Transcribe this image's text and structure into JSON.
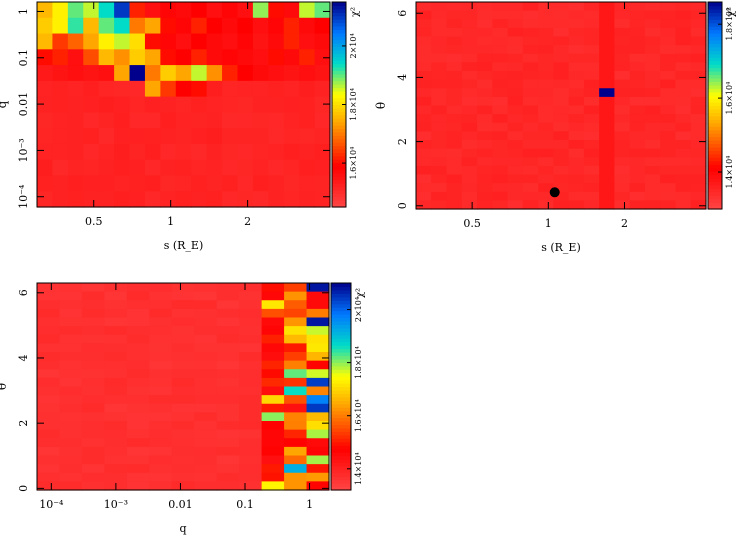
{
  "chart_data": [
    {
      "type": "heatmap",
      "panel": "top-left",
      "xlabel": "s (R_E)",
      "ylabel": "q",
      "xscale": "log",
      "yscale": "log",
      "xlim": [
        0.3,
        4.2
      ],
      "ylim": [
        6e-05,
        1.6
      ],
      "xticks": [
        {
          "v": 0.5,
          "label": "0.5"
        },
        {
          "v": 1,
          "label": "1"
        },
        {
          "v": 2,
          "label": "2"
        }
      ],
      "yticks": [
        {
          "v": 0.0001,
          "label": "10⁻⁴"
        },
        {
          "v": 0.001,
          "label": "10⁻³"
        },
        {
          "v": 0.01,
          "label": "0.01"
        },
        {
          "v": 0.1,
          "label": "0.1"
        },
        {
          "v": 1,
          "label": "1"
        }
      ],
      "colorbar": {
        "label": "χ²",
        "ticks": [
          {
            "v": 16000,
            "label": "1.6×10⁴"
          },
          {
            "v": 18000,
            "label": "1.8×10⁴"
          },
          {
            "v": 20000,
            "label": "2×10⁴"
          }
        ],
        "min": 14500,
        "max": 21500
      },
      "grid": {
        "rows": 13,
        "cols": 19,
        "background": 15200,
        "hot_cells": [
          [
            0,
            0,
            17600
          ],
          [
            0,
            1,
            18200
          ],
          [
            0,
            2,
            19000
          ],
          [
            0,
            3,
            18600
          ],
          [
            0,
            4,
            19400
          ],
          [
            0,
            5,
            21000
          ],
          [
            0,
            6,
            16200
          ],
          [
            0,
            7,
            15600
          ],
          [
            0,
            8,
            15800
          ],
          [
            0,
            9,
            15700
          ],
          [
            0,
            10,
            15900
          ],
          [
            0,
            11,
            15600
          ],
          [
            0,
            12,
            15800
          ],
          [
            0,
            13,
            15600
          ],
          [
            0,
            14,
            18800
          ],
          [
            0,
            15,
            16000
          ],
          [
            0,
            16,
            15700
          ],
          [
            0,
            17,
            18600
          ],
          [
            0,
            18,
            19000
          ],
          [
            1,
            0,
            17800
          ],
          [
            1,
            1,
            18200
          ],
          [
            1,
            2,
            19200
          ],
          [
            1,
            3,
            17600
          ],
          [
            1,
            4,
            19000
          ],
          [
            1,
            5,
            19400
          ],
          [
            1,
            6,
            17000
          ],
          [
            1,
            7,
            17400
          ],
          [
            1,
            8,
            16000
          ],
          [
            1,
            9,
            15800
          ],
          [
            1,
            10,
            16200
          ],
          [
            1,
            11,
            15900
          ],
          [
            1,
            12,
            15700
          ],
          [
            1,
            13,
            15900
          ],
          [
            1,
            14,
            15600
          ],
          [
            1,
            15,
            15800
          ],
          [
            1,
            16,
            16200
          ],
          [
            1,
            17,
            15700
          ],
          [
            1,
            18,
            15900
          ],
          [
            2,
            0,
            17600
          ],
          [
            2,
            1,
            16400
          ],
          [
            2,
            2,
            16800
          ],
          [
            2,
            3,
            17400
          ],
          [
            2,
            4,
            18200
          ],
          [
            2,
            5,
            18600
          ],
          [
            2,
            6,
            18000
          ],
          [
            2,
            7,
            16000
          ],
          [
            2,
            8,
            15800
          ],
          [
            2,
            9,
            15600
          ],
          [
            2,
            10,
            15900
          ],
          [
            2,
            11,
            15700
          ],
          [
            2,
            12,
            15600
          ],
          [
            2,
            13,
            15800
          ],
          [
            2,
            14,
            15500
          ],
          [
            2,
            15,
            15700
          ],
          [
            2,
            16,
            16200
          ],
          [
            2,
            17,
            15600
          ],
          [
            2,
            18,
            15700
          ],
          [
            3,
            0,
            16000
          ],
          [
            3,
            1,
            16200
          ],
          [
            3,
            2,
            15600
          ],
          [
            3,
            3,
            16600
          ],
          [
            3,
            4,
            17600
          ],
          [
            3,
            5,
            17200
          ],
          [
            3,
            6,
            17800
          ],
          [
            3,
            7,
            17400
          ],
          [
            3,
            8,
            16000
          ],
          [
            3,
            9,
            15900
          ],
          [
            3,
            10,
            16200
          ],
          [
            3,
            11,
            15700
          ],
          [
            3,
            12,
            15800
          ],
          [
            3,
            13,
            15700
          ],
          [
            3,
            14,
            15600
          ],
          [
            3,
            15,
            16000
          ],
          [
            3,
            16,
            15700
          ],
          [
            3,
            17,
            16200
          ],
          [
            3,
            18,
            15600
          ],
          [
            4,
            0,
            15400
          ],
          [
            4,
            1,
            15500
          ],
          [
            4,
            2,
            15600
          ],
          [
            4,
            3,
            15500
          ],
          [
            4,
            4,
            15600
          ],
          [
            4,
            5,
            17400
          ],
          [
            4,
            6,
            21500
          ],
          [
            4,
            7,
            17000
          ],
          [
            4,
            8,
            17800
          ],
          [
            4,
            9,
            17400
          ],
          [
            4,
            10,
            18600
          ],
          [
            4,
            11,
            17200
          ],
          [
            4,
            12,
            16200
          ],
          [
            4,
            13,
            15900
          ],
          [
            4,
            14,
            15700
          ],
          [
            4,
            15,
            15600
          ],
          [
            4,
            16,
            15500
          ],
          [
            4,
            17,
            15600
          ],
          [
            4,
            18,
            15500
          ],
          [
            5,
            7,
            17400
          ],
          [
            5,
            8,
            16400
          ],
          [
            5,
            9,
            15900
          ],
          [
            5,
            10,
            16000
          ]
        ]
      }
    },
    {
      "type": "heatmap",
      "panel": "top-right",
      "xlabel": "s (R_E)",
      "ylabel": "θ",
      "xscale": "log",
      "xlim": [
        0.3,
        4.2
      ],
      "ylim": [
        -0.1,
        6.35
      ],
      "xticks": [
        {
          "v": 0.5,
          "label": "0.5"
        },
        {
          "v": 1,
          "label": "1"
        },
        {
          "v": 2,
          "label": "2"
        }
      ],
      "yticks": [
        {
          "v": 0,
          "label": "0"
        },
        {
          "v": 2,
          "label": "2"
        },
        {
          "v": 4,
          "label": "4"
        },
        {
          "v": 6,
          "label": "6"
        }
      ],
      "colorbar": {
        "label": "χ²",
        "ticks": [
          {
            "v": 14000,
            "label": "1.4×10⁴"
          },
          {
            "v": 16000,
            "label": "1.6×10⁴"
          },
          {
            "v": 18000,
            "label": "1.8×10⁴"
          }
        ],
        "min": 13000,
        "max": 18600
      },
      "grid": {
        "rows": 24,
        "cols": 19,
        "background": 13500,
        "hot_cells": [
          [
            10,
            12,
            18600
          ]
        ]
      },
      "marker": {
        "s": 1.06,
        "theta": 0.42
      }
    },
    {
      "type": "heatmap",
      "panel": "bottom-left",
      "xlabel": "q",
      "ylabel": "θ",
      "xscale": "log",
      "xlim": [
        6e-05,
        2.0
      ],
      "ylim": [
        -0.05,
        6.3
      ],
      "xticks": [
        {
          "v": 0.0001,
          "label": "10⁻⁴"
        },
        {
          "v": 0.001,
          "label": "10⁻³"
        },
        {
          "v": 0.01,
          "label": "0.01"
        },
        {
          "v": 0.1,
          "label": "0.1"
        },
        {
          "v": 1,
          "label": "1"
        }
      ],
      "yticks": [
        {
          "v": 0,
          "label": "0"
        },
        {
          "v": 2,
          "label": "2"
        },
        {
          "v": 4,
          "label": "4"
        },
        {
          "v": 6,
          "label": "6"
        }
      ],
      "colorbar": {
        "label": "χ²",
        "ticks": [
          {
            "v": 14000,
            "label": "1.4×10⁴"
          },
          {
            "v": 16000,
            "label": "1.6×10⁴"
          },
          {
            "v": 18000,
            "label": "1.8×10⁴"
          },
          {
            "v": 20000,
            "label": "2×10⁴"
          }
        ],
        "min": 13200,
        "max": 21000
      },
      "grid": {
        "rows": 24,
        "cols": 13,
        "background": 13700
      }
    }
  ]
}
